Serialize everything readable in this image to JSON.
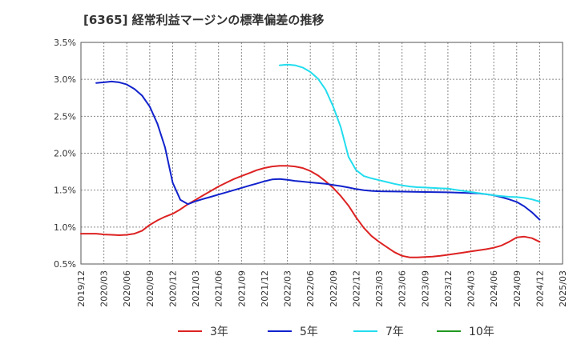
{
  "chart_data": {
    "type": "line",
    "title": "[6365]  経常利益マージンの標準偏差の推移",
    "xlabel": "",
    "ylabel": "",
    "ylim": [
      0.5,
      3.5
    ],
    "y_ticks": [
      "0.5%",
      "1.0%",
      "1.5%",
      "2.0%",
      "2.5%",
      "3.0%",
      "3.5%"
    ],
    "x_tick_labels": [
      "2019/12",
      "2020/03",
      "2020/06",
      "2020/09",
      "2020/12",
      "2021/03",
      "2021/06",
      "2021/09",
      "2021/12",
      "2022/03",
      "2022/06",
      "2022/09",
      "2022/12",
      "2023/03",
      "2023/06",
      "2023/09",
      "2023/12",
      "2024/03",
      "2024/06",
      "2024/09",
      "2024/12",
      "2025/03"
    ],
    "grid": true,
    "legend_position": "bottom",
    "series": [
      {
        "name": "3年",
        "color": "#dd2222",
        "points": [
          [
            "2019/12",
            0.91
          ],
          [
            "2020/01",
            0.91
          ],
          [
            "2020/02",
            0.91
          ],
          [
            "2020/03",
            0.9
          ],
          [
            "2020/04",
            0.895
          ],
          [
            "2020/05",
            0.89
          ],
          [
            "2020/06",
            0.895
          ],
          [
            "2020/07",
            0.91
          ],
          [
            "2020/08",
            0.95
          ],
          [
            "2020/09",
            1.03
          ],
          [
            "2020/10",
            1.09
          ],
          [
            "2020/11",
            1.14
          ],
          [
            "2020/12",
            1.18
          ],
          [
            "2021/01",
            1.24
          ],
          [
            "2021/02",
            1.31
          ],
          [
            "2021/03",
            1.37
          ],
          [
            "2021/04",
            1.43
          ],
          [
            "2021/05",
            1.49
          ],
          [
            "2021/06",
            1.55
          ],
          [
            "2021/07",
            1.6
          ],
          [
            "2021/08",
            1.65
          ],
          [
            "2021/09",
            1.69
          ],
          [
            "2021/10",
            1.73
          ],
          [
            "2021/11",
            1.77
          ],
          [
            "2021/12",
            1.8
          ],
          [
            "2022/01",
            1.82
          ],
          [
            "2022/02",
            1.83
          ],
          [
            "2022/03",
            1.83
          ],
          [
            "2022/04",
            1.82
          ],
          [
            "2022/05",
            1.8
          ],
          [
            "2022/06",
            1.76
          ],
          [
            "2022/07",
            1.7
          ],
          [
            "2022/08",
            1.62
          ],
          [
            "2022/09",
            1.53
          ],
          [
            "2022/10",
            1.42
          ],
          [
            "2022/11",
            1.29
          ],
          [
            "2022/12",
            1.13
          ],
          [
            "2023/01",
            0.99
          ],
          [
            "2023/02",
            0.88
          ],
          [
            "2023/03",
            0.8
          ],
          [
            "2023/04",
            0.73
          ],
          [
            "2023/05",
            0.66
          ],
          [
            "2023/06",
            0.61
          ],
          [
            "2023/07",
            0.59
          ],
          [
            "2023/08",
            0.59
          ],
          [
            "2023/09",
            0.595
          ],
          [
            "2023/10",
            0.6
          ],
          [
            "2023/11",
            0.61
          ],
          [
            "2023/12",
            0.625
          ],
          [
            "2024/01",
            0.64
          ],
          [
            "2024/02",
            0.655
          ],
          [
            "2024/03",
            0.67
          ],
          [
            "2024/04",
            0.685
          ],
          [
            "2024/05",
            0.7
          ],
          [
            "2024/06",
            0.72
          ],
          [
            "2024/07",
            0.75
          ],
          [
            "2024/08",
            0.8
          ],
          [
            "2024/09",
            0.86
          ],
          [
            "2024/10",
            0.87
          ],
          [
            "2024/11",
            0.85
          ],
          [
            "2024/12",
            0.8
          ]
        ]
      },
      {
        "name": "5年",
        "color": "#1122cc",
        "points": [
          [
            "2020/02",
            2.95
          ],
          [
            "2020/03",
            2.96
          ],
          [
            "2020/04",
            2.97
          ],
          [
            "2020/05",
            2.96
          ],
          [
            "2020/06",
            2.93
          ],
          [
            "2020/07",
            2.87
          ],
          [
            "2020/08",
            2.78
          ],
          [
            "2020/09",
            2.63
          ],
          [
            "2020/10",
            2.4
          ],
          [
            "2020/11",
            2.08
          ],
          [
            "2020/12",
            1.6
          ],
          [
            "2021/01",
            1.37
          ],
          [
            "2021/02",
            1.31
          ],
          [
            "2021/03",
            1.35
          ],
          [
            "2021/04",
            1.38
          ],
          [
            "2021/05",
            1.41
          ],
          [
            "2021/06",
            1.44
          ],
          [
            "2021/07",
            1.47
          ],
          [
            "2021/08",
            1.5
          ],
          [
            "2021/09",
            1.53
          ],
          [
            "2021/10",
            1.56
          ],
          [
            "2021/11",
            1.59
          ],
          [
            "2021/12",
            1.62
          ],
          [
            "2022/01",
            1.645
          ],
          [
            "2022/02",
            1.65
          ],
          [
            "2022/03",
            1.64
          ],
          [
            "2022/04",
            1.625
          ],
          [
            "2022/05",
            1.615
          ],
          [
            "2022/06",
            1.605
          ],
          [
            "2022/07",
            1.595
          ],
          [
            "2022/08",
            1.585
          ],
          [
            "2022/09",
            1.57
          ],
          [
            "2022/10",
            1.555
          ],
          [
            "2022/11",
            1.535
          ],
          [
            "2022/12",
            1.515
          ],
          [
            "2023/01",
            1.5
          ],
          [
            "2023/02",
            1.49
          ],
          [
            "2023/03",
            1.485
          ],
          [
            "2023/06",
            1.48
          ],
          [
            "2023/09",
            1.475
          ],
          [
            "2023/12",
            1.47
          ],
          [
            "2024/03",
            1.46
          ],
          [
            "2024/04",
            1.455
          ],
          [
            "2024/05",
            1.445
          ],
          [
            "2024/06",
            1.43
          ],
          [
            "2024/07",
            1.405
          ],
          [
            "2024/08",
            1.375
          ],
          [
            "2024/09",
            1.34
          ],
          [
            "2024/10",
            1.28
          ],
          [
            "2024/11",
            1.2
          ],
          [
            "2024/12",
            1.1
          ]
        ]
      },
      {
        "name": "7年",
        "color": "#22ddee",
        "points": [
          [
            "2022/02",
            3.19
          ],
          [
            "2022/03",
            3.2
          ],
          [
            "2022/04",
            3.19
          ],
          [
            "2022/05",
            3.16
          ],
          [
            "2022/06",
            3.1
          ],
          [
            "2022/07",
            3.01
          ],
          [
            "2022/08",
            2.86
          ],
          [
            "2022/09",
            2.63
          ],
          [
            "2022/10",
            2.35
          ],
          [
            "2022/11",
            1.95
          ],
          [
            "2022/12",
            1.77
          ],
          [
            "2023/01",
            1.69
          ],
          [
            "2023/02",
            1.66
          ],
          [
            "2023/03",
            1.635
          ],
          [
            "2023/04",
            1.61
          ],
          [
            "2023/05",
            1.585
          ],
          [
            "2023/06",
            1.565
          ],
          [
            "2023/07",
            1.55
          ],
          [
            "2023/08",
            1.54
          ],
          [
            "2023/09",
            1.535
          ],
          [
            "2023/10",
            1.53
          ],
          [
            "2023/11",
            1.525
          ],
          [
            "2023/12",
            1.52
          ],
          [
            "2024/01",
            1.505
          ],
          [
            "2024/02",
            1.49
          ],
          [
            "2024/03",
            1.475
          ],
          [
            "2024/04",
            1.46
          ],
          [
            "2024/05",
            1.445
          ],
          [
            "2024/06",
            1.43
          ],
          [
            "2024/07",
            1.42
          ],
          [
            "2024/08",
            1.41
          ],
          [
            "2024/09",
            1.405
          ],
          [
            "2024/10",
            1.395
          ],
          [
            "2024/11",
            1.375
          ],
          [
            "2024/12",
            1.345
          ]
        ]
      },
      {
        "name": "10年",
        "color": "#229922",
        "points": []
      }
    ]
  }
}
